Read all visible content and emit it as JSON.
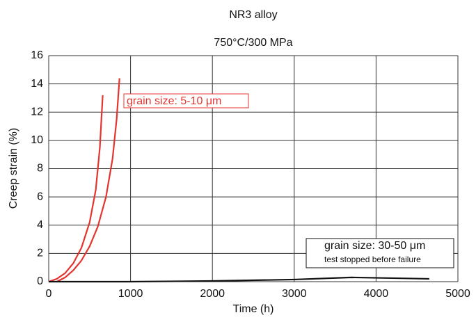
{
  "chart_data": {
    "type": "line",
    "title": "NR3 alloy",
    "subtitle": "750°C/300 MPa",
    "xlabel": "Time (h)",
    "ylabel": "Creep strain (%)",
    "xlim": [
      0,
      5000
    ],
    "xticks": [
      0,
      1000,
      2000,
      3000,
      4000,
      5000
    ],
    "ylim": [
      0,
      16
    ],
    "yticks": [
      0,
      2,
      4,
      6,
      8,
      10,
      12,
      14,
      16
    ],
    "grid": true,
    "series": [
      {
        "color": "#e3342f",
        "x": [
          0,
          100,
          200,
          300,
          400,
          500,
          575,
          625,
          660
        ],
        "values": [
          0,
          0.2,
          0.6,
          1.3,
          2.4,
          4.2,
          6.5,
          9.5,
          13.2
        ]
      },
      {
        "color": "#e3342f",
        "x": [
          100,
          200,
          300,
          400,
          500,
          600,
          700,
          780,
          830,
          865
        ],
        "values": [
          0,
          0.3,
          0.8,
          1.5,
          2.5,
          3.9,
          6,
          8.7,
          11.5,
          14.4
        ]
      },
      {
        "color": "#111111",
        "x": [
          0,
          1000,
          2000,
          3000,
          3700,
          4200,
          4650
        ],
        "values": [
          0,
          0,
          0.05,
          0.15,
          0.3,
          0.25,
          0.2
        ]
      }
    ],
    "annotations": [
      {
        "color": "#e3342f",
        "lines": [
          "grain size: 5-10 μm"
        ]
      },
      {
        "color": "#111111",
        "lines": [
          "grain size: 30-50 μm",
          "test stopped before failure"
        ]
      }
    ]
  }
}
